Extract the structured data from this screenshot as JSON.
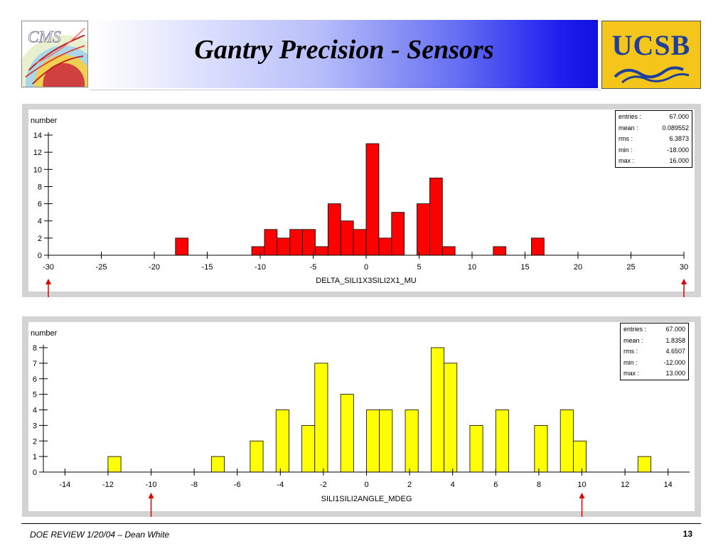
{
  "header": {
    "title": "Gantry Precision - Sensors",
    "cms_logo_text": "CMS",
    "ucsb_logo_text": "UCSB"
  },
  "footer": {
    "left": "DOE REVIEW 1/20/04 – Dean White",
    "page_number": "13"
  },
  "colors": {
    "chart1_bar": "#ff0000",
    "chart2_bar": "#ffff00",
    "marker_arrow": "#e00000",
    "panel_bg": "#d3d3d3"
  },
  "chart_data": [
    {
      "type": "bar",
      "ylabel": "number",
      "xlabel": "DELTA_SILI1X3SILI2X1_MU",
      "xlim": [
        -30,
        30
      ],
      "ylim": [
        0,
        14
      ],
      "xticks": [
        -30,
        -25,
        -20,
        -15,
        -10,
        -5,
        0,
        5,
        10,
        15,
        20,
        25,
        30
      ],
      "yticks": [
        0,
        2,
        4,
        6,
        8,
        10,
        12,
        14
      ],
      "bin_width": 1.2,
      "bins": [
        {
          "x": -18.0,
          "value": 2
        },
        {
          "x": -10.8,
          "value": 1
        },
        {
          "x": -9.6,
          "value": 3
        },
        {
          "x": -8.4,
          "value": 2
        },
        {
          "x": -7.2,
          "value": 3
        },
        {
          "x": -6.0,
          "value": 3
        },
        {
          "x": -4.8,
          "value": 1
        },
        {
          "x": -3.6,
          "value": 6
        },
        {
          "x": -2.4,
          "value": 4
        },
        {
          "x": -1.2,
          "value": 3
        },
        {
          "x": 0.0,
          "value": 13
        },
        {
          "x": 1.2,
          "value": 2
        },
        {
          "x": 2.4,
          "value": 5
        },
        {
          "x": 4.8,
          "value": 6
        },
        {
          "x": 6.0,
          "value": 9
        },
        {
          "x": 7.2,
          "value": 1
        },
        {
          "x": 12.0,
          "value": 1
        },
        {
          "x": 15.6,
          "value": 2
        }
      ],
      "stats": [
        {
          "label": "entries :",
          "value": "67.000"
        },
        {
          "label": "mean :",
          "value": "0.089552"
        },
        {
          "label": "rms :",
          "value": "6.3873"
        },
        {
          "label": "min :",
          "value": "-18.000"
        },
        {
          "label": "max :",
          "value": "16.000"
        }
      ],
      "markers": [
        -30,
        30
      ]
    },
    {
      "type": "bar",
      "ylabel": "number",
      "xlabel": "SILI1SILI2ANGLE_MDEG",
      "xlim": [
        -15,
        15
      ],
      "ylim": [
        0,
        8
      ],
      "xticks": [
        -14,
        -12,
        -10,
        -8,
        -6,
        -4,
        -2,
        0,
        2,
        4,
        6,
        8,
        10,
        12,
        14
      ],
      "yticks": [
        0,
        1,
        2,
        3,
        4,
        5,
        6,
        7,
        8
      ],
      "bin_width": 0.6,
      "bins": [
        {
          "x": -12.0,
          "value": 1
        },
        {
          "x": -7.2,
          "value": 1
        },
        {
          "x": -5.4,
          "value": 2
        },
        {
          "x": -4.2,
          "value": 4
        },
        {
          "x": -3.0,
          "value": 3
        },
        {
          "x": -2.4,
          "value": 7
        },
        {
          "x": -1.2,
          "value": 5
        },
        {
          "x": 0.0,
          "value": 4
        },
        {
          "x": 0.6,
          "value": 4
        },
        {
          "x": 1.8,
          "value": 4
        },
        {
          "x": 3.0,
          "value": 8
        },
        {
          "x": 3.6,
          "value": 7
        },
        {
          "x": 4.8,
          "value": 3
        },
        {
          "x": 6.0,
          "value": 4
        },
        {
          "x": 7.8,
          "value": 3
        },
        {
          "x": 9.0,
          "value": 4
        },
        {
          "x": 9.6,
          "value": 2
        },
        {
          "x": 12.6,
          "value": 1
        }
      ],
      "stats": [
        {
          "label": "entries :",
          "value": "67.000"
        },
        {
          "label": "mean :",
          "value": "1.8358"
        },
        {
          "label": "rms :",
          "value": "4.6507"
        },
        {
          "label": "min :",
          "value": "-12.000"
        },
        {
          "label": "max :",
          "value": "13.000"
        }
      ],
      "markers": [
        -10,
        10
      ]
    }
  ]
}
